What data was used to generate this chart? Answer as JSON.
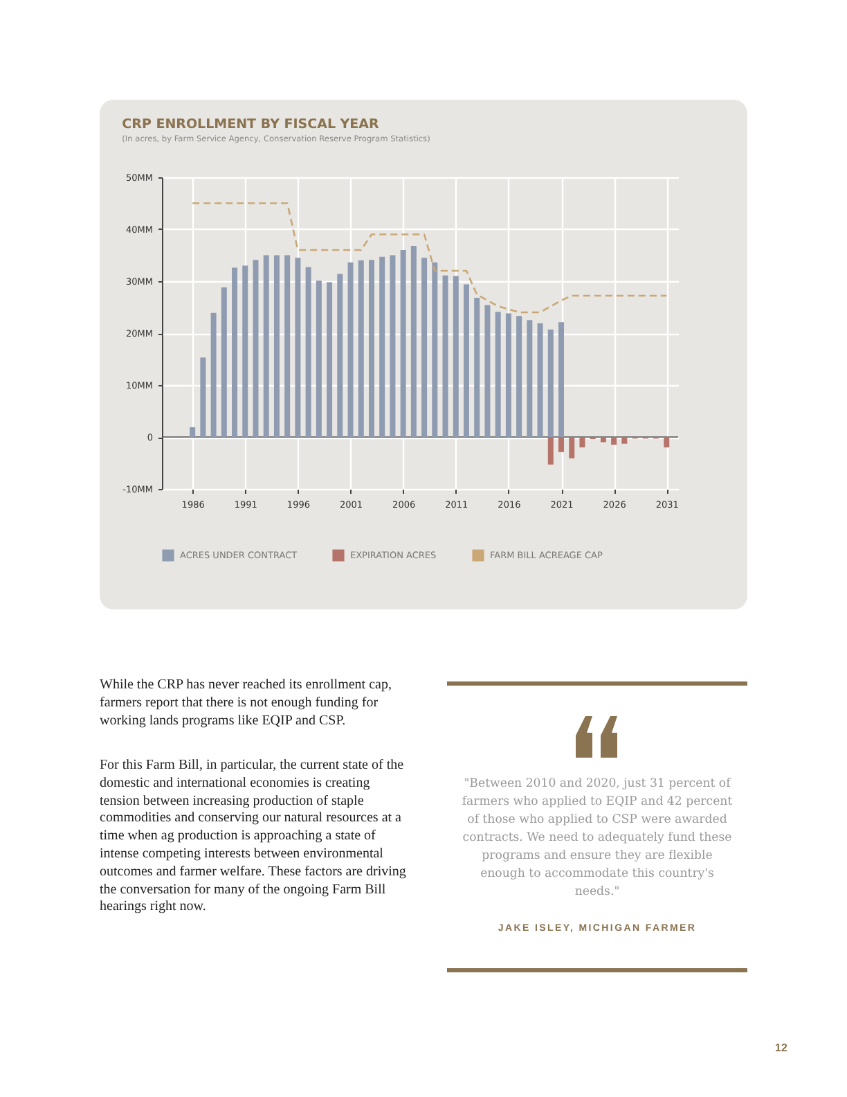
{
  "chart_data": {
    "type": "bar",
    "title": "CRP ENROLLMENT BY FISCAL YEAR",
    "subtitle": "(In acres, by Farm Service Agency, Conservation Reserve Program Statistics)",
    "series": [
      {
        "name": "ACRES UNDER CONTRACT",
        "color": "#8e9bb0",
        "x": [
          1986,
          1987,
          1988,
          1989,
          1990,
          1991,
          1992,
          1993,
          1994,
          1995,
          1996,
          1997,
          1998,
          1999,
          2000,
          2001,
          2002,
          2003,
          2004,
          2005,
          2006,
          2007,
          2008,
          2009,
          2010,
          2011,
          2012,
          2013,
          2014,
          2015,
          2016,
          2017,
          2018,
          2019,
          2020,
          2021
        ],
        "values": [
          1.9,
          15.3,
          23.9,
          28.8,
          32.6,
          33.0,
          34.1,
          35.0,
          35.0,
          35.0,
          34.5,
          32.7,
          30.1,
          29.8,
          31.4,
          33.6,
          34.0,
          34.1,
          34.7,
          35.0,
          36.0,
          36.8,
          34.5,
          33.6,
          31.1,
          31.0,
          29.4,
          26.8,
          25.4,
          24.1,
          23.8,
          23.3,
          22.5,
          21.9,
          20.7,
          22.1
        ]
      },
      {
        "name": "EXPIRATION ACRES",
        "color": "#b5736a",
        "x": [
          2020,
          2021,
          2022,
          2023,
          2024,
          2025,
          2026,
          2027,
          2028,
          2029,
          2030,
          2031
        ],
        "values": [
          -5.3,
          -2.9,
          -4.1,
          -2.0,
          -0.4,
          -1.0,
          -1.5,
          -1.3,
          -0.3,
          -0.3,
          -0.3,
          -2.0
        ]
      },
      {
        "name": "FARM BILL ACREAGE CAP",
        "type": "line",
        "line_style": "dashed",
        "color": "#c9a876",
        "x": [
          1986,
          1995,
          1996,
          2002,
          2003,
          2008,
          2009,
          2012,
          2013,
          2015,
          2017,
          2019,
          2021,
          2022,
          2031
        ],
        "values": [
          45,
          45,
          36,
          36,
          39,
          39,
          32,
          32,
          27.4,
          25.2,
          24,
          24,
          26.3,
          27.2,
          27.2
        ]
      }
    ],
    "xlim": [
      1983.1,
      2032.1
    ],
    "xticks": [
      1986,
      1991,
      1996,
      2001,
      2006,
      2011,
      2016,
      2021,
      2026,
      2031
    ],
    "ylim": [
      -10,
      50
    ],
    "yticks": [
      {
        "value": -10,
        "label": "-10MM"
      },
      {
        "value": 0,
        "label": "0"
      },
      {
        "value": 10,
        "label": "10MM"
      },
      {
        "value": 20,
        "label": "20MM"
      },
      {
        "value": 30,
        "label": "30MM"
      },
      {
        "value": 40,
        "label": "40MM"
      },
      {
        "value": 50,
        "label": "50MM"
      }
    ],
    "ref_lines": [
      {
        "axis": "y",
        "value": 0,
        "color": "#555555"
      }
    ],
    "grid": true,
    "legend": "bottom",
    "annotations": [
      "While the CRP has never reached its enrollment cap, farmers report that there is not enough funding for working lands programs like EQIP and CSP.",
      "For this Farm Bill, in particular, the current state of the domestic and international economies is creating tension between increasing production of staple commodities and conserving our natural resources at a time when ag production is approaching a state of intense competing interests between environmental outcomes and farmer welfare. These factors are driving the conversation for many of the ongoing Farm Bill hearings right now.",
      "\"Between 2010 and 2020, just 31 percent of farmers who applied to EQIP and 42 percent of those who applied to CSP were awarded contracts. We need to adequately fund these programs and ensure they are flexible enough to accommodate this country's needs.\"",
      "JAKE ISLEY, MICHIGAN FARMER",
      "12"
    ]
  }
}
